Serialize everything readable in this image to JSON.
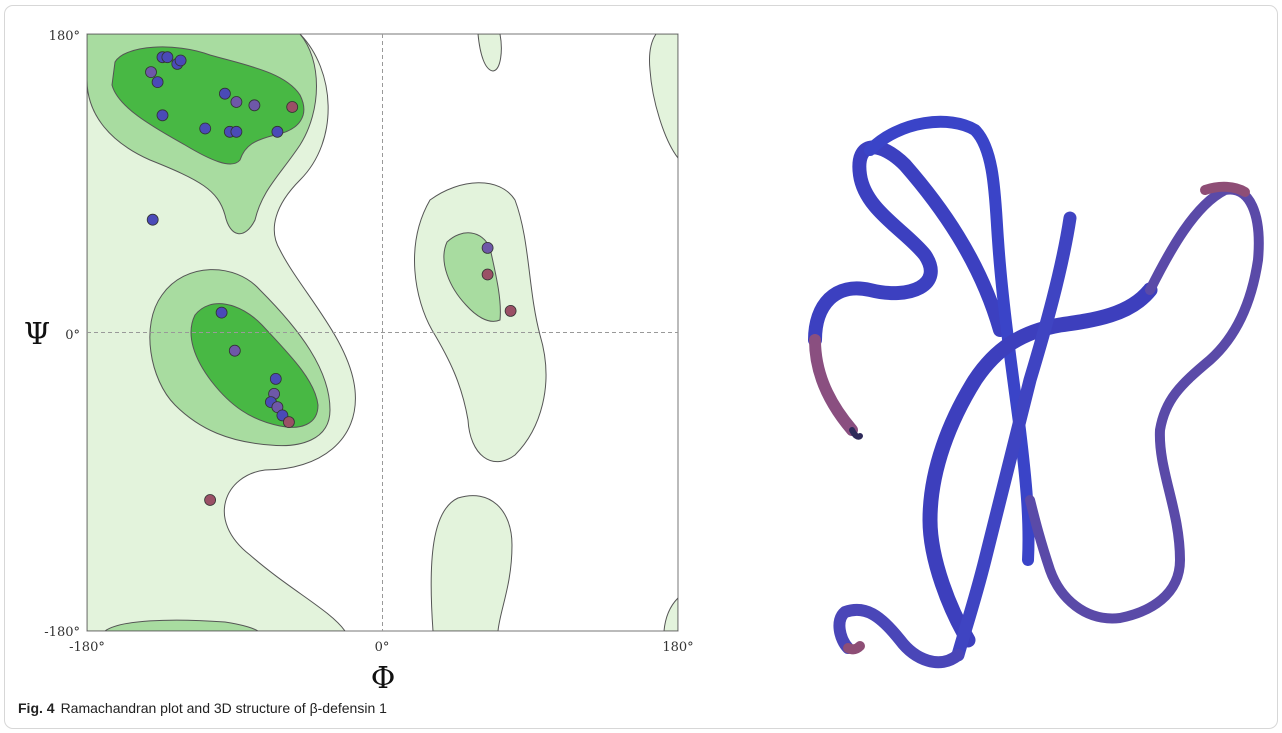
{
  "caption": {
    "label": "Fig. 4",
    "text": "Ramachandran plot and 3D structure of β-defensin 1"
  },
  "colors": {
    "allowed": "#e3f3dc",
    "favored": "#a8dca0",
    "core": "#48b844",
    "point_blue": "#4a4ab8",
    "point_mixed": "#6e58a8",
    "point_red": "#9a5066",
    "ribbon_blue": "#3f44c2",
    "ribbon_red": "#8e4e76"
  },
  "chart_data": {
    "type": "scatter",
    "xlabel": "Φ",
    "ylabel": "Ψ",
    "xlim": [
      -180,
      180
    ],
    "ylim": [
      -180,
      180
    ],
    "x_ticks": [
      {
        "value": -180,
        "label": "-180°"
      },
      {
        "value": 0,
        "label": "0°"
      },
      {
        "value": 180,
        "label": "180°"
      }
    ],
    "y_ticks": [
      {
        "value": 180,
        "label": "180°"
      },
      {
        "value": 0,
        "label": "0°"
      },
      {
        "value": -180,
        "label": "-180°"
      }
    ],
    "grid": false,
    "reference_lines": [
      0
    ],
    "points": [
      {
        "phi": -134,
        "psi": 166,
        "c": "blue"
      },
      {
        "phi": -131,
        "psi": 166,
        "c": "blue"
      },
      {
        "phi": -141,
        "psi": 157,
        "c": "mixed"
      },
      {
        "phi": -137,
        "psi": 151,
        "c": "blue"
      },
      {
        "phi": -125,
        "psi": 162,
        "c": "blue"
      },
      {
        "phi": -123,
        "psi": 164,
        "c": "blue"
      },
      {
        "phi": -96,
        "psi": 144,
        "c": "blue"
      },
      {
        "phi": -89,
        "psi": 139,
        "c": "mixed"
      },
      {
        "phi": -78,
        "psi": 137,
        "c": "mixed"
      },
      {
        "phi": -55,
        "psi": 136,
        "c": "red"
      },
      {
        "phi": -134,
        "psi": 131,
        "c": "blue"
      },
      {
        "phi": -108,
        "psi": 123,
        "c": "blue"
      },
      {
        "phi": -93,
        "psi": 121,
        "c": "blue"
      },
      {
        "phi": -89,
        "psi": 121,
        "c": "blue"
      },
      {
        "phi": -64,
        "psi": 121,
        "c": "blue"
      },
      {
        "phi": -140,
        "psi": 68,
        "c": "blue"
      },
      {
        "phi": 64,
        "psi": 51,
        "c": "mixed"
      },
      {
        "phi": 64,
        "psi": 35,
        "c": "red"
      },
      {
        "phi": 78,
        "psi": 13,
        "c": "red"
      },
      {
        "phi": -98,
        "psi": 12,
        "c": "blue"
      },
      {
        "phi": -90,
        "psi": -11,
        "c": "mixed"
      },
      {
        "phi": -65,
        "psi": -28,
        "c": "blue"
      },
      {
        "phi": -66,
        "psi": -37,
        "c": "mixed"
      },
      {
        "phi": -68,
        "psi": -42,
        "c": "blue"
      },
      {
        "phi": -64,
        "psi": -45,
        "c": "mixed"
      },
      {
        "phi": -61,
        "psi": -50,
        "c": "blue"
      },
      {
        "phi": -57,
        "psi": -54,
        "c": "red"
      },
      {
        "phi": -105,
        "psi": -101,
        "c": "red"
      }
    ]
  }
}
